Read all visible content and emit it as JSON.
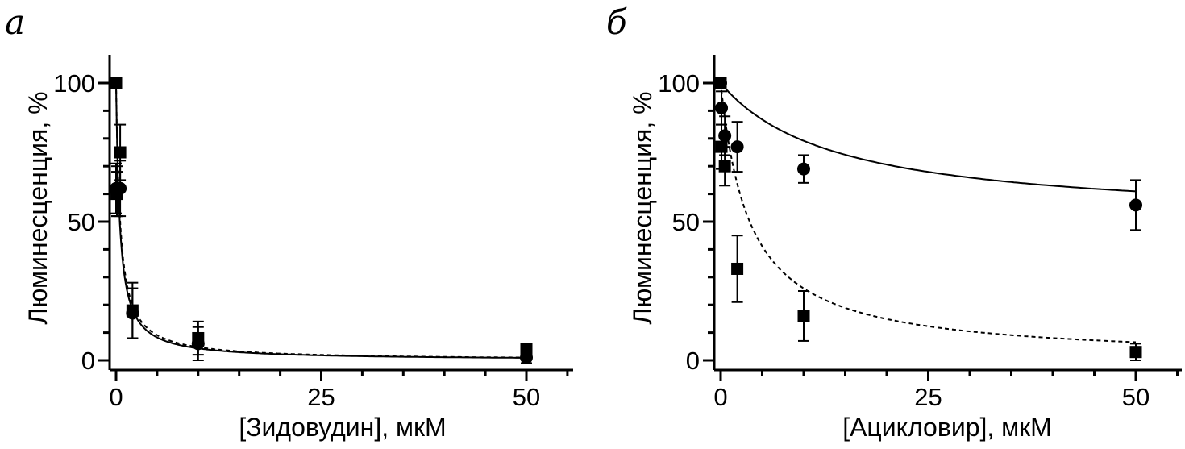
{
  "panels": [
    {
      "letter": "а",
      "chart_data": {
        "type": "scatter",
        "xlabel": "[Зидовудин], мкМ",
        "ylabel": "Люминесценция, %",
        "xlim": [
          0,
          55
        ],
        "ylim": [
          0,
          110
        ],
        "xticks": [
          0,
          25,
          50
        ],
        "yticks": [
          0,
          50,
          100
        ],
        "grid": false,
        "series": [
          {
            "marker": "circle",
            "line": "solid",
            "x": [
              0,
              0.1,
              0.5,
              2,
              10,
              50
            ],
            "y": [
              62,
              61,
              62,
              17,
              6,
              1
            ],
            "err": [
              9,
              9,
              10,
              9,
              6,
              2
            ],
            "fit_ic50": 0.45
          },
          {
            "marker": "square",
            "line": "dashed",
            "x": [
              0,
              0.1,
              0.5,
              2,
              10,
              50
            ],
            "y": [
              100,
              60,
              75,
              18,
              8,
              4
            ],
            "err": [
              0,
              8,
              10,
              10,
              6,
              2
            ],
            "fit_ic50": 0.5
          }
        ]
      }
    },
    {
      "letter": "б",
      "chart_data": {
        "type": "scatter",
        "xlabel": "[Ацикловир], мкМ",
        "ylabel": "Люминесценция, %",
        "xlim": [
          0,
          55
        ],
        "ylim": [
          0,
          110
        ],
        "xticks": [
          0,
          25,
          50
        ],
        "yticks": [
          0,
          50,
          100
        ],
        "grid": false,
        "series": [
          {
            "marker": "circle",
            "line": "solid",
            "x": [
              0,
              0.1,
              0.5,
              2,
              10,
              50
            ],
            "y": [
              100,
              91,
              81,
              77,
              69,
              56
            ],
            "err": [
              0,
              6,
              7,
              9,
              5,
              9
            ],
            "fit_bottom": 50,
            "fit_ic50": 14
          },
          {
            "marker": "square",
            "line": "dashed",
            "x": [
              0,
              0.1,
              0.5,
              2,
              10,
              50
            ],
            "y": [
              100,
              77,
              70,
              33,
              16,
              3
            ],
            "err": [
              0,
              8,
              7,
              12,
              9,
              3
            ],
            "fit_ic50": 3.5
          }
        ]
      }
    }
  ]
}
